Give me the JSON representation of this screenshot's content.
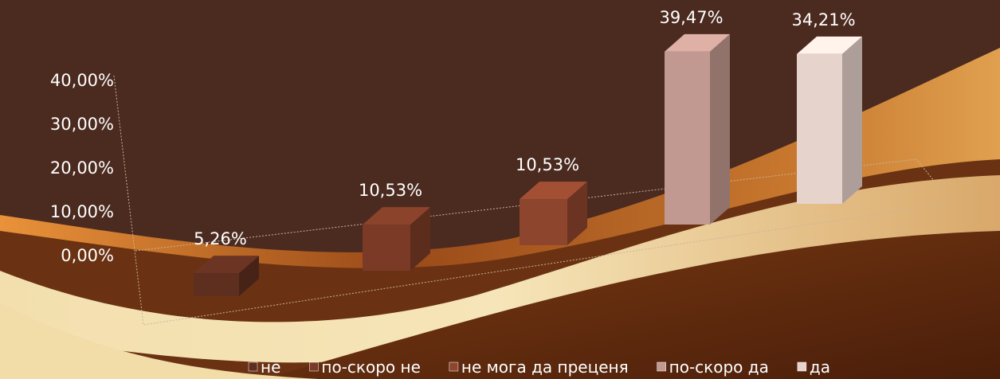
{
  "chart_data": {
    "type": "bar",
    "ylim": [
      0,
      40
    ],
    "yticks": [
      {
        "value": 0,
        "label": "0,00%"
      },
      {
        "value": 10,
        "label": "10,00%"
      },
      {
        "value": 20,
        "label": "20,00%"
      },
      {
        "value": 30,
        "label": "30,00%"
      },
      {
        "value": 40,
        "label": "40,00%"
      }
    ],
    "series": [
      {
        "name": "не",
        "color": "#5e2e1e",
        "values": [
          5.26
        ],
        "value_labels": [
          "5,26%"
        ]
      },
      {
        "name": "по-скоро не",
        "color": "#7a3a26",
        "values": [
          10.53
        ],
        "value_labels": [
          "10,53%"
        ]
      },
      {
        "name": "не мога да преценя",
        "color": "#8e452d",
        "values": [
          10.53
        ],
        "value_labels": [
          "10,53%"
        ]
      },
      {
        "name": "по-скоро да",
        "color": "#c29990",
        "values": [
          39.47
        ],
        "value_labels": [
          "39,47%"
        ]
      },
      {
        "name": "да",
        "color": "#e6d3cc",
        "values": [
          34.21
        ],
        "value_labels": [
          "34,21%"
        ]
      }
    ]
  }
}
